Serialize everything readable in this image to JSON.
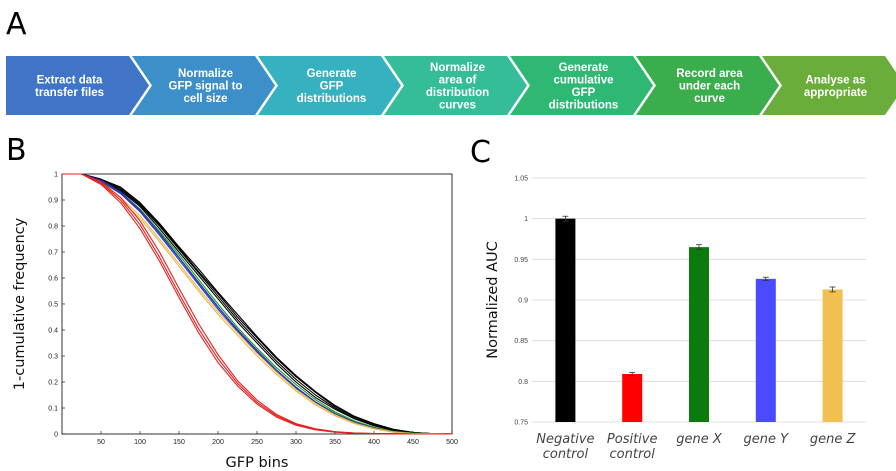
{
  "panels": {
    "a": "A",
    "b": "B",
    "c": "C"
  },
  "workflow": {
    "steps": [
      {
        "lines": [
          "Extract data",
          "transfer files"
        ],
        "color": "#3f74c6"
      },
      {
        "lines": [
          "Normalize",
          "GFP signal  to",
          "cell size"
        ],
        "color": "#3d8fc9"
      },
      {
        "lines": [
          "Generate",
          "GFP",
          "distributions"
        ],
        "color": "#36b1c0"
      },
      {
        "lines": [
          "Normalize",
          "area of",
          "distribution",
          "curves"
        ],
        "color": "#35bd9a"
      },
      {
        "lines": [
          "Generate",
          "cumulative",
          "GFP",
          "distributions"
        ],
        "color": "#2fb874"
      },
      {
        "lines": [
          "Record area",
          "under each",
          "curve"
        ],
        "color": "#3aae4c"
      },
      {
        "lines": [
          "Analyse  as",
          "appropriate"
        ],
        "color": "#6aad3a"
      }
    ]
  },
  "chart_data": [
    {
      "type": "line",
      "xlabel": "GFP bins",
      "ylabel": "1-cumulative frequency",
      "xlim": [
        0,
        500
      ],
      "ylim": [
        0,
        1
      ],
      "xticks": [
        "50",
        "100",
        "150",
        "200",
        "250",
        "300",
        "350",
        "400",
        "450",
        "500"
      ],
      "yticks": [
        "0",
        "0.1",
        "0.2",
        "0.3",
        "0.4",
        "0.5",
        "0.6",
        "0.7",
        "0.8",
        "0.9",
        "1"
      ],
      "grid": false,
      "series": [
        {
          "color": "#000000",
          "x": [
            0,
            25,
            50,
            75,
            100,
            125,
            150,
            175,
            200,
            225,
            250,
            275,
            300,
            325,
            350,
            375,
            400,
            425,
            450,
            475,
            500
          ],
          "y": [
            1,
            1,
            0.98,
            0.94,
            0.88,
            0.8,
            0.71,
            0.62,
            0.53,
            0.44,
            0.36,
            0.28,
            0.21,
            0.15,
            0.1,
            0.06,
            0.035,
            0.015,
            0.005,
            0.001,
            0
          ]
        },
        {
          "color": "#000000",
          "x": [
            0,
            25,
            50,
            75,
            100,
            125,
            150,
            175,
            200,
            225,
            250,
            275,
            300,
            325,
            350,
            375,
            400,
            425,
            450,
            475,
            500
          ],
          "y": [
            1,
            1,
            0.98,
            0.945,
            0.885,
            0.805,
            0.715,
            0.625,
            0.54,
            0.45,
            0.37,
            0.29,
            0.22,
            0.16,
            0.105,
            0.065,
            0.038,
            0.017,
            0.006,
            0.001,
            0
          ]
        },
        {
          "color": "#000000",
          "x": [
            0,
            25,
            50,
            75,
            100,
            125,
            150,
            175,
            200,
            225,
            250,
            275,
            300,
            325,
            350,
            375,
            400,
            425,
            450,
            475,
            500
          ],
          "y": [
            1,
            1,
            0.975,
            0.935,
            0.875,
            0.79,
            0.7,
            0.61,
            0.52,
            0.43,
            0.35,
            0.27,
            0.2,
            0.14,
            0.095,
            0.058,
            0.032,
            0.013,
            0.004,
            0.001,
            0
          ]
        },
        {
          "color": "#000000",
          "x": [
            0,
            25,
            50,
            75,
            100,
            125,
            150,
            175,
            200,
            225,
            250,
            275,
            300,
            325,
            350,
            375,
            400,
            425,
            450,
            475,
            500
          ],
          "y": [
            1,
            1,
            0.98,
            0.95,
            0.89,
            0.81,
            0.72,
            0.635,
            0.545,
            0.46,
            0.375,
            0.295,
            0.225,
            0.163,
            0.11,
            0.068,
            0.04,
            0.018,
            0.006,
            0.001,
            0
          ]
        },
        {
          "color": "#1aa01a",
          "x": [
            0,
            25,
            50,
            75,
            100,
            125,
            150,
            175,
            200,
            225,
            250,
            275,
            300,
            325,
            350,
            375,
            400,
            425,
            450,
            475,
            500
          ],
          "y": [
            1,
            1,
            0.975,
            0.93,
            0.865,
            0.78,
            0.69,
            0.595,
            0.5,
            0.41,
            0.33,
            0.255,
            0.19,
            0.132,
            0.085,
            0.05,
            0.026,
            0.01,
            0.003,
            0.001,
            0
          ]
        },
        {
          "color": "#1aa01a",
          "x": [
            0,
            25,
            50,
            75,
            100,
            125,
            150,
            175,
            200,
            225,
            250,
            275,
            300,
            325,
            350,
            375,
            400,
            425,
            450,
            475,
            500
          ],
          "y": [
            1,
            1,
            0.97,
            0.925,
            0.86,
            0.775,
            0.68,
            0.585,
            0.49,
            0.4,
            0.32,
            0.245,
            0.18,
            0.124,
            0.08,
            0.046,
            0.024,
            0.009,
            0.003,
            0.001,
            0
          ]
        },
        {
          "color": "#2b2bd6",
          "x": [
            0,
            25,
            50,
            75,
            100,
            125,
            150,
            175,
            200,
            225,
            250,
            275,
            300,
            325,
            350,
            375,
            400,
            425,
            450,
            475,
            500
          ],
          "y": [
            1,
            1,
            0.975,
            0.925,
            0.855,
            0.765,
            0.67,
            0.575,
            0.48,
            0.395,
            0.315,
            0.24,
            0.175,
            0.12,
            0.076,
            0.043,
            0.022,
            0.008,
            0.002,
            0.001,
            0
          ]
        },
        {
          "color": "#2b2bd6",
          "x": [
            0,
            25,
            50,
            75,
            100,
            125,
            150,
            175,
            200,
            225,
            250,
            275,
            300,
            325,
            350,
            375,
            400,
            425,
            450,
            475,
            500
          ],
          "y": [
            1,
            1,
            0.975,
            0.93,
            0.862,
            0.772,
            0.678,
            0.582,
            0.488,
            0.402,
            0.322,
            0.246,
            0.18,
            0.123,
            0.078,
            0.045,
            0.023,
            0.008,
            0.002,
            0.001,
            0
          ]
        },
        {
          "color": "#e8b84a",
          "x": [
            0,
            25,
            50,
            75,
            100,
            125,
            150,
            175,
            200,
            225,
            250,
            275,
            300,
            325,
            350,
            375,
            400,
            425,
            450,
            475,
            500
          ],
          "y": [
            1,
            1,
            0.96,
            0.9,
            0.83,
            0.74,
            0.645,
            0.55,
            0.46,
            0.38,
            0.3,
            0.23,
            0.165,
            0.112,
            0.07,
            0.04,
            0.02,
            0.007,
            0.002,
            0.001,
            0
          ]
        },
        {
          "color": "#e8b84a",
          "x": [
            0,
            25,
            50,
            75,
            100,
            125,
            150,
            175,
            200,
            225,
            250,
            275,
            300,
            325,
            350,
            375,
            400,
            425,
            450,
            475,
            500
          ],
          "y": [
            1,
            1,
            0.965,
            0.91,
            0.84,
            0.75,
            0.655,
            0.56,
            0.47,
            0.39,
            0.31,
            0.238,
            0.172,
            0.118,
            0.074,
            0.042,
            0.021,
            0.008,
            0.002,
            0.001,
            0
          ]
        },
        {
          "color": "#e62020",
          "x": [
            0,
            25,
            50,
            75,
            100,
            125,
            150,
            175,
            200,
            225,
            250,
            275,
            300,
            325,
            350,
            375,
            400,
            425,
            450,
            475,
            500
          ],
          "y": [
            1,
            1,
            0.97,
            0.91,
            0.82,
            0.7,
            0.56,
            0.425,
            0.305,
            0.205,
            0.13,
            0.075,
            0.04,
            0.02,
            0.009,
            0.004,
            0.002,
            0.001,
            0,
            0,
            0
          ]
        },
        {
          "color": "#e62020",
          "x": [
            0,
            25,
            50,
            75,
            100,
            125,
            150,
            175,
            200,
            225,
            250,
            275,
            300,
            325,
            350,
            375,
            400,
            425,
            450,
            475,
            500
          ],
          "y": [
            1,
            1,
            0.965,
            0.9,
            0.805,
            0.68,
            0.54,
            0.405,
            0.29,
            0.195,
            0.122,
            0.07,
            0.037,
            0.018,
            0.008,
            0.004,
            0.002,
            0.001,
            0,
            0,
            0
          ]
        },
        {
          "color": "#e62020",
          "x": [
            0,
            25,
            50,
            75,
            100,
            125,
            150,
            175,
            200,
            225,
            250,
            275,
            300,
            325,
            350,
            375,
            400,
            425,
            450,
            475,
            500
          ],
          "y": [
            1,
            1,
            0.96,
            0.89,
            0.79,
            0.665,
            0.525,
            0.39,
            0.275,
            0.185,
            0.115,
            0.065,
            0.034,
            0.016,
            0.007,
            0.003,
            0.001,
            0.001,
            0,
            0,
            0
          ]
        }
      ]
    },
    {
      "type": "bar",
      "ylabel": "Normalized AUC",
      "categories": [
        [
          "Negative",
          "control"
        ],
        [
          "Positive",
          "control"
        ],
        [
          "gene X"
        ],
        [
          "gene Y"
        ],
        [
          "gene Z"
        ]
      ],
      "values": [
        1.0,
        0.809,
        0.965,
        0.926,
        0.913
      ],
      "errors": [
        0.003,
        0.002,
        0.003,
        0.002,
        0.003
      ],
      "colors": [
        "#000000",
        "#ff0000",
        "#0c7a0c",
        "#4a4aff",
        "#f0c050"
      ],
      "ylim": [
        0.75,
        1.05
      ],
      "yticks": [
        "0.75",
        "0.8",
        "0.85",
        "0.9",
        "0.95",
        "1",
        "1.05"
      ],
      "grid": true
    }
  ]
}
